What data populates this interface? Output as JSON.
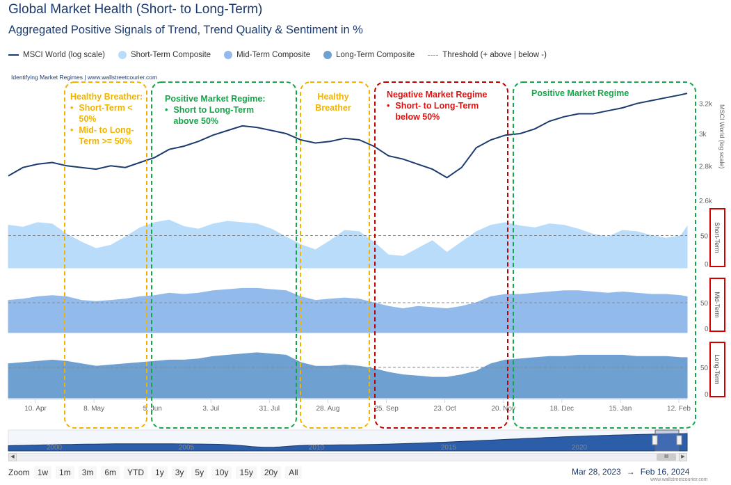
{
  "title": "Global Market Health (Short- to Long-Term)",
  "subtitle": "Aggregated Positive Signals of Trend, Trend Quality & Sentiment in %",
  "credit": "Identifying Market Regimes | www.wallstreetcourier.com",
  "credit_footer": "www.wallstreetcourier.com",
  "legend": [
    {
      "label": "MSCI World (log scale)",
      "kind": "line",
      "color": "#1b3a6e"
    },
    {
      "label": "Short-Term Composite",
      "kind": "dot",
      "color": "#b9dcfb"
    },
    {
      "label": "Mid-Term Composite",
      "kind": "dot",
      "color": "#92bbec"
    },
    {
      "label": "Long-Term Composite",
      "kind": "dot",
      "color": "#6fa0d2"
    },
    {
      "label": "Threshold (+ above | below -)",
      "kind": "dash",
      "color": "#999999"
    }
  ],
  "colors": {
    "msci": "#1b3a6e",
    "short": "#b9dcfb",
    "mid": "#92bbec",
    "long": "#6fa0d2",
    "orange": "#f0b400",
    "green": "#15a64a",
    "red": "#c00000"
  },
  "annotations": {
    "breather1": {
      "title": "Healthy Breather:",
      "bullets": [
        "Short-Term < 50%",
        "Mid- to Long-Term >= 50%"
      ]
    },
    "positive1": {
      "title": "Positive Market Regime:",
      "bullets": [
        "Short to Long-Term above 50%"
      ]
    },
    "breather2": {
      "title": "Healthy Breather"
    },
    "negative": {
      "title": "Negative Market Regime",
      "bullets": [
        "Short- to Long-Term below 50%"
      ]
    },
    "positive2": {
      "title": "Positive Market Regime"
    }
  },
  "axis_labels": {
    "msci": "MSCI World (log scale)",
    "short": "Short-Term",
    "mid": "Mid-Term",
    "long": "Long-Term"
  },
  "navigator": {
    "years": [
      "2000",
      "2005",
      "2010",
      "2015",
      "2020"
    ],
    "thumb": "III"
  },
  "zoom": {
    "label": "Zoom",
    "buttons": [
      "1w",
      "1m",
      "3m",
      "6m",
      "YTD",
      "1y",
      "3y",
      "5y",
      "10y",
      "15y",
      "20y",
      "All"
    ]
  },
  "range": {
    "from": "Mar 28, 2023",
    "arrow": "→",
    "to": "Feb 16, 2024"
  },
  "chart_data": {
    "type": "line",
    "x_tick_labels": [
      "10. Apr",
      "8. May",
      "5. Jun",
      "3. Jul",
      "31. Jul",
      "28. Aug",
      "25. Sep",
      "23. Oct",
      "20. Nov",
      "18. Dec",
      "15. Jan",
      "12. Feb"
    ],
    "x": [
      "2023-03-28",
      "2023-04-04",
      "2023-04-11",
      "2023-04-18",
      "2023-04-25",
      "2023-05-02",
      "2023-05-09",
      "2023-05-16",
      "2023-05-23",
      "2023-05-30",
      "2023-06-06",
      "2023-06-13",
      "2023-06-20",
      "2023-06-27",
      "2023-07-04",
      "2023-07-11",
      "2023-07-18",
      "2023-07-25",
      "2023-08-01",
      "2023-08-08",
      "2023-08-15",
      "2023-08-22",
      "2023-08-29",
      "2023-09-05",
      "2023-09-12",
      "2023-09-19",
      "2023-09-26",
      "2023-10-03",
      "2023-10-10",
      "2023-10-17",
      "2023-10-24",
      "2023-10-31",
      "2023-11-07",
      "2023-11-14",
      "2023-11-21",
      "2023-11-28",
      "2023-12-05",
      "2023-12-12",
      "2023-12-19",
      "2023-12-26",
      "2024-01-02",
      "2024-01-09",
      "2024-01-16",
      "2024-01-23",
      "2024-01-30",
      "2024-02-06",
      "2024-02-13",
      "2024-02-16"
    ],
    "series": [
      {
        "name": "MSCI World (log scale)",
        "axis": "MSCI World (log scale)",
        "ylim": [
          2600,
          3300
        ],
        "ticks": [
          "2.6k",
          "2.8k",
          "3k",
          "3.2k"
        ],
        "values": [
          2740,
          2790,
          2810,
          2820,
          2800,
          2790,
          2780,
          2800,
          2790,
          2820,
          2850,
          2900,
          2920,
          2950,
          2990,
          3020,
          3050,
          3040,
          3020,
          3000,
          2960,
          2940,
          2950,
          2970,
          2960,
          2920,
          2860,
          2840,
          2810,
          2780,
          2730,
          2790,
          2910,
          2960,
          2990,
          3000,
          3030,
          3080,
          3110,
          3130,
          3130,
          3150,
          3170,
          3200,
          3220,
          3240,
          3260,
          3270
        ]
      },
      {
        "name": "Short-Term Composite",
        "axis": "Short-Term",
        "ylim": [
          0,
          100
        ],
        "ticks": [
          "0",
          "50"
        ],
        "threshold": 50,
        "values": [
          66,
          63,
          70,
          68,
          52,
          40,
          30,
          35,
          48,
          62,
          70,
          74,
          64,
          60,
          68,
          72,
          70,
          68,
          60,
          48,
          36,
          28,
          42,
          58,
          56,
          40,
          20,
          18,
          30,
          42,
          24,
          40,
          56,
          66,
          70,
          65,
          62,
          68,
          66,
          60,
          52,
          48,
          58,
          56,
          50,
          46,
          50,
          64
        ]
      },
      {
        "name": "Mid-Term Composite",
        "axis": "Mid-Term",
        "ylim": [
          0,
          100
        ],
        "ticks": [
          "0",
          "50"
        ],
        "threshold": 50,
        "values": [
          54,
          56,
          60,
          62,
          60,
          54,
          52,
          54,
          56,
          60,
          62,
          66,
          64,
          66,
          70,
          72,
          74,
          74,
          72,
          70,
          60,
          54,
          56,
          58,
          56,
          50,
          44,
          40,
          44,
          42,
          40,
          44,
          50,
          60,
          64,
          64,
          66,
          68,
          70,
          70,
          68,
          66,
          68,
          66,
          64,
          64,
          62,
          60
        ]
      },
      {
        "name": "Long-Term Composite",
        "axis": "Long-Term",
        "ylim": [
          0,
          100
        ],
        "ticks": [
          "0",
          "50"
        ],
        "threshold": 50,
        "values": [
          56,
          58,
          60,
          62,
          60,
          56,
          52,
          54,
          56,
          58,
          60,
          62,
          62,
          64,
          68,
          70,
          72,
          74,
          72,
          70,
          58,
          52,
          52,
          54,
          52,
          48,
          42,
          38,
          36,
          34,
          34,
          38,
          44,
          56,
          62,
          64,
          66,
          68,
          68,
          70,
          70,
          70,
          70,
          68,
          68,
          68,
          66,
          66
        ]
      }
    ]
  }
}
